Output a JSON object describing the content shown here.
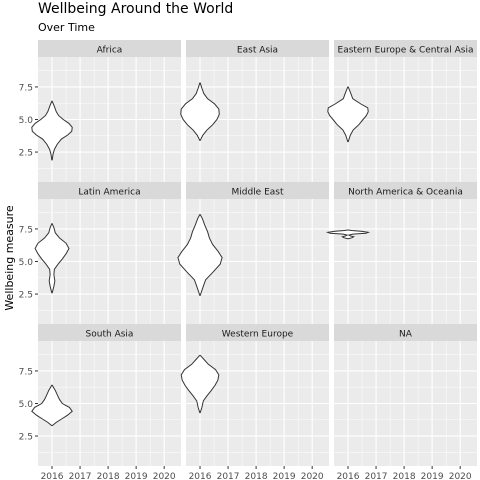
{
  "chart_data": {
    "type": "violin",
    "title": "Wellbeing Around the World",
    "subtitle": "Over Time",
    "xlabel": "",
    "ylabel": "Wellbeing measure",
    "x_ticks": [
      "2016",
      "2017",
      "2018",
      "2019",
      "2020"
    ],
    "y_ticks": [
      "2.5",
      "5.0",
      "7.5"
    ],
    "xlim": [
      2015.5,
      2020.6
    ],
    "ylim": [
      0.2,
      9.8
    ],
    "grid": true,
    "panels": [
      {
        "name": "Africa",
        "x": 2016,
        "has_data": true,
        "profile": [
          [
            1.9,
            0.005
          ],
          [
            2.3,
            0.02
          ],
          [
            2.7,
            0.05
          ],
          [
            3.1,
            0.11
          ],
          [
            3.5,
            0.2
          ],
          [
            3.8,
            0.33
          ],
          [
            4.1,
            0.42
          ],
          [
            4.4,
            0.43
          ],
          [
            4.7,
            0.36
          ],
          [
            5.0,
            0.24
          ],
          [
            5.3,
            0.14
          ],
          [
            5.6,
            0.09
          ],
          [
            6.0,
            0.05
          ],
          [
            6.4,
            0.005
          ]
        ]
      },
      {
        "name": "East Asia",
        "x": 2016,
        "has_data": true,
        "profile": [
          [
            3.4,
            0.005
          ],
          [
            3.8,
            0.06
          ],
          [
            4.2,
            0.15
          ],
          [
            4.6,
            0.27
          ],
          [
            5.0,
            0.36
          ],
          [
            5.4,
            0.41
          ],
          [
            5.8,
            0.4
          ],
          [
            6.2,
            0.31
          ],
          [
            6.6,
            0.16
          ],
          [
            7.0,
            0.08
          ],
          [
            7.4,
            0.04
          ],
          [
            7.8,
            0.005
          ]
        ]
      },
      {
        "name": "Eastern Europe & Central Asia",
        "x": 2016,
        "has_data": true,
        "profile": [
          [
            3.3,
            0.005
          ],
          [
            3.8,
            0.05
          ],
          [
            4.2,
            0.11
          ],
          [
            4.6,
            0.23
          ],
          [
            5.0,
            0.32
          ],
          [
            5.3,
            0.39
          ],
          [
            5.6,
            0.43
          ],
          [
            5.9,
            0.42
          ],
          [
            6.2,
            0.27
          ],
          [
            6.6,
            0.1
          ],
          [
            7.0,
            0.06
          ],
          [
            7.5,
            0.005
          ]
        ]
      },
      {
        "name": "Latin America",
        "x": 2016,
        "has_data": true,
        "profile": [
          [
            2.6,
            0.005
          ],
          [
            3.1,
            0.04
          ],
          [
            3.5,
            0.06
          ],
          [
            4.0,
            0.04
          ],
          [
            4.4,
            0.05
          ],
          [
            4.8,
            0.13
          ],
          [
            5.2,
            0.22
          ],
          [
            5.6,
            0.3
          ],
          [
            6.0,
            0.36
          ],
          [
            6.4,
            0.3
          ],
          [
            6.8,
            0.16
          ],
          [
            7.2,
            0.07
          ],
          [
            7.6,
            0.04
          ],
          [
            7.9,
            0.005
          ]
        ]
      },
      {
        "name": "Middle East",
        "x": 2016,
        "has_data": true,
        "profile": [
          [
            2.4,
            0.005
          ],
          [
            3.0,
            0.06
          ],
          [
            3.6,
            0.12
          ],
          [
            4.2,
            0.28
          ],
          [
            4.8,
            0.43
          ],
          [
            5.3,
            0.47
          ],
          [
            5.8,
            0.38
          ],
          [
            6.3,
            0.27
          ],
          [
            6.8,
            0.2
          ],
          [
            7.3,
            0.16
          ],
          [
            7.8,
            0.1
          ],
          [
            8.3,
            0.05
          ],
          [
            8.6,
            0.005
          ]
        ]
      },
      {
        "name": "North America & Oceania",
        "x": 2016,
        "has_data": true,
        "profile": [
          [
            6.75,
            0.005
          ],
          [
            6.82,
            0.08
          ],
          [
            6.9,
            0.12
          ],
          [
            6.97,
            0.05
          ],
          [
            7.03,
            0.02
          ],
          [
            7.1,
            0.1
          ],
          [
            7.17,
            0.38
          ],
          [
            7.24,
            0.43
          ],
          [
            7.31,
            0.3
          ],
          [
            7.38,
            0.08
          ],
          [
            7.42,
            0.005
          ]
        ]
      },
      {
        "name": "South Asia",
        "x": 2016,
        "has_data": true,
        "profile": [
          [
            3.3,
            0.005
          ],
          [
            3.55,
            0.09
          ],
          [
            3.8,
            0.2
          ],
          [
            4.1,
            0.33
          ],
          [
            4.4,
            0.43
          ],
          [
            4.7,
            0.37
          ],
          [
            5.0,
            0.22
          ],
          [
            5.3,
            0.16
          ],
          [
            5.6,
            0.12
          ],
          [
            6.0,
            0.07
          ],
          [
            6.4,
            0.005
          ]
        ]
      },
      {
        "name": "Western Europe",
        "x": 2016,
        "has_data": true,
        "profile": [
          [
            4.3,
            0.005
          ],
          [
            4.7,
            0.04
          ],
          [
            5.2,
            0.07
          ],
          [
            5.6,
            0.15
          ],
          [
            6.0,
            0.24
          ],
          [
            6.4,
            0.32
          ],
          [
            6.8,
            0.38
          ],
          [
            7.2,
            0.4
          ],
          [
            7.6,
            0.33
          ],
          [
            8.0,
            0.18
          ],
          [
            8.4,
            0.08
          ],
          [
            8.7,
            0.005
          ]
        ]
      },
      {
        "name": "NA",
        "x": 2016,
        "has_data": false,
        "profile": []
      }
    ]
  }
}
